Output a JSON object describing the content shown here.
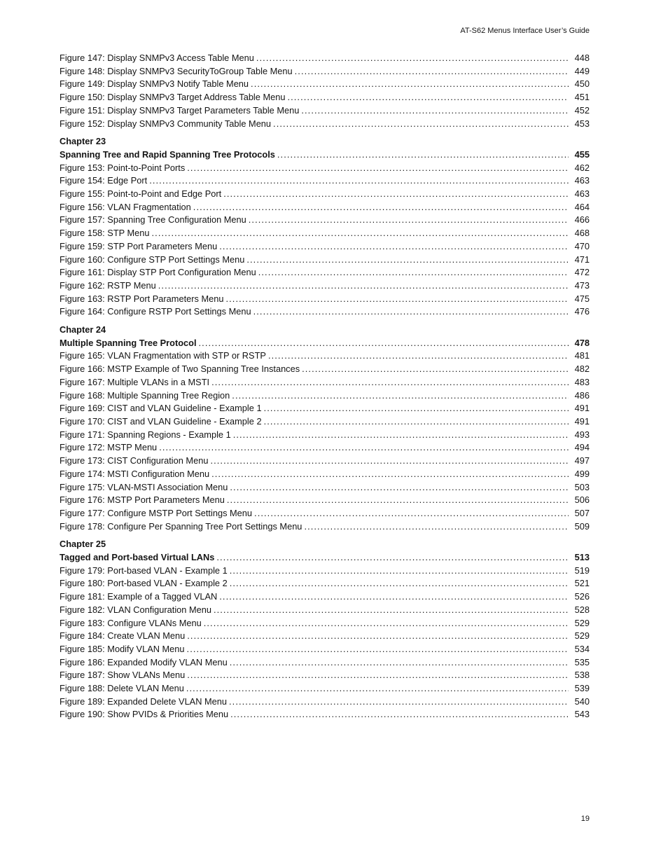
{
  "page": {
    "header": "AT-S62 Menus Interface User’s Guide",
    "page_number": "19"
  },
  "toc": {
    "sections": [
      {
        "entries": [
          {
            "label": "Figure 147: Display SNMPv3 Access Table Menu",
            "page": "448"
          },
          {
            "label": "Figure 148: Display SNMPv3 SecurityToGroup Table Menu",
            "page": "449"
          },
          {
            "label": "Figure 149: Display SNMPv3 Notify Table Menu",
            "page": "450"
          },
          {
            "label": "Figure 150: Display SNMPv3 Target Address Table Menu",
            "page": "451"
          },
          {
            "label": "Figure 151: Display SNMPv3 Target Parameters Table Menu",
            "page": "452"
          },
          {
            "label": "Figure 152: Display SNMPv3 Community Table Menu",
            "page": "453"
          }
        ]
      },
      {
        "chapter": "Chapter 23",
        "title": "Spanning Tree and Rapid Spanning Tree Protocols",
        "page": "455",
        "entries": [
          {
            "label": "Figure 153: Point-to-Point Ports",
            "page": "462"
          },
          {
            "label": "Figure 154: Edge Port",
            "page": "463"
          },
          {
            "label": "Figure 155: Point-to-Point and Edge Port",
            "page": "463"
          },
          {
            "label": "Figure 156: VLAN Fragmentation",
            "page": "464"
          },
          {
            "label": "Figure 157: Spanning Tree Configuration Menu",
            "page": "466"
          },
          {
            "label": "Figure 158: STP Menu",
            "page": "468"
          },
          {
            "label": "Figure 159: STP Port Parameters Menu",
            "page": "470"
          },
          {
            "label": "Figure 160: Configure STP Port Settings Menu",
            "page": "471"
          },
          {
            "label": "Figure 161: Display STP Port Configuration Menu",
            "page": "472"
          },
          {
            "label": "Figure 162: RSTP Menu",
            "page": "473"
          },
          {
            "label": "Figure 163: RSTP Port Parameters Menu",
            "page": "475"
          },
          {
            "label": "Figure 164: Configure RSTP Port Settings Menu",
            "page": "476"
          }
        ]
      },
      {
        "chapter": "Chapter 24",
        "title": "Multiple Spanning Tree Protocol",
        "page": "478",
        "entries": [
          {
            "label": "Figure 165: VLAN Fragmentation with STP or RSTP",
            "page": "481"
          },
          {
            "label": "Figure 166: MSTP Example of Two Spanning Tree Instances",
            "page": "482"
          },
          {
            "label": "Figure 167: Multiple VLANs in a MSTI",
            "page": "483"
          },
          {
            "label": "Figure 168: Multiple Spanning Tree Region",
            "page": "486"
          },
          {
            "label": "Figure 169: CIST and VLAN Guideline - Example 1",
            "page": "491"
          },
          {
            "label": "Figure 170: CIST and VLAN Guideline - Example 2",
            "page": "491"
          },
          {
            "label": "Figure 171: Spanning Regions - Example 1",
            "page": "493"
          },
          {
            "label": "Figure 172: MSTP Menu",
            "page": "494"
          },
          {
            "label": "Figure 173: CIST Configuration Menu",
            "page": "497"
          },
          {
            "label": "Figure 174: MSTI Configuration Menu",
            "page": "499"
          },
          {
            "label": "Figure 175: VLAN-MSTI Association Menu",
            "page": "503"
          },
          {
            "label": "Figure 176: MSTP Port Parameters Menu",
            "page": "506"
          },
          {
            "label": "Figure 177: Configure MSTP Port Settings Menu",
            "page": "507"
          },
          {
            "label": "Figure 178: Configure Per Spanning Tree Port Settings Menu",
            "page": "509"
          }
        ]
      },
      {
        "chapter": "Chapter 25",
        "title": "Tagged and Port-based Virtual LANs",
        "page": "513",
        "entries": [
          {
            "label": "Figure 179: Port-based VLAN - Example 1",
            "page": "519"
          },
          {
            "label": "Figure 180: Port-based VLAN - Example 2",
            "page": "521"
          },
          {
            "label": "Figure 181: Example of a Tagged VLAN",
            "page": "526"
          },
          {
            "label": "Figure 182: VLAN Configuration Menu",
            "page": "528"
          },
          {
            "label": "Figure 183: Configure VLANs Menu",
            "page": "529"
          },
          {
            "label": "Figure 184: Create VLAN Menu",
            "page": "529"
          },
          {
            "label": "Figure 185: Modify VLAN Menu",
            "page": "534"
          },
          {
            "label": "Figure 186: Expanded Modify VLAN Menu",
            "page": "535"
          },
          {
            "label": "Figure 187: Show VLANs Menu",
            "page": "538"
          },
          {
            "label": "Figure 188: Delete VLAN Menu",
            "page": "539"
          },
          {
            "label": "Figure 189: Expanded Delete VLAN Menu",
            "page": "540"
          },
          {
            "label": "Figure 190: Show PVIDs & Priorities Menu",
            "page": "543"
          }
        ]
      }
    ]
  }
}
